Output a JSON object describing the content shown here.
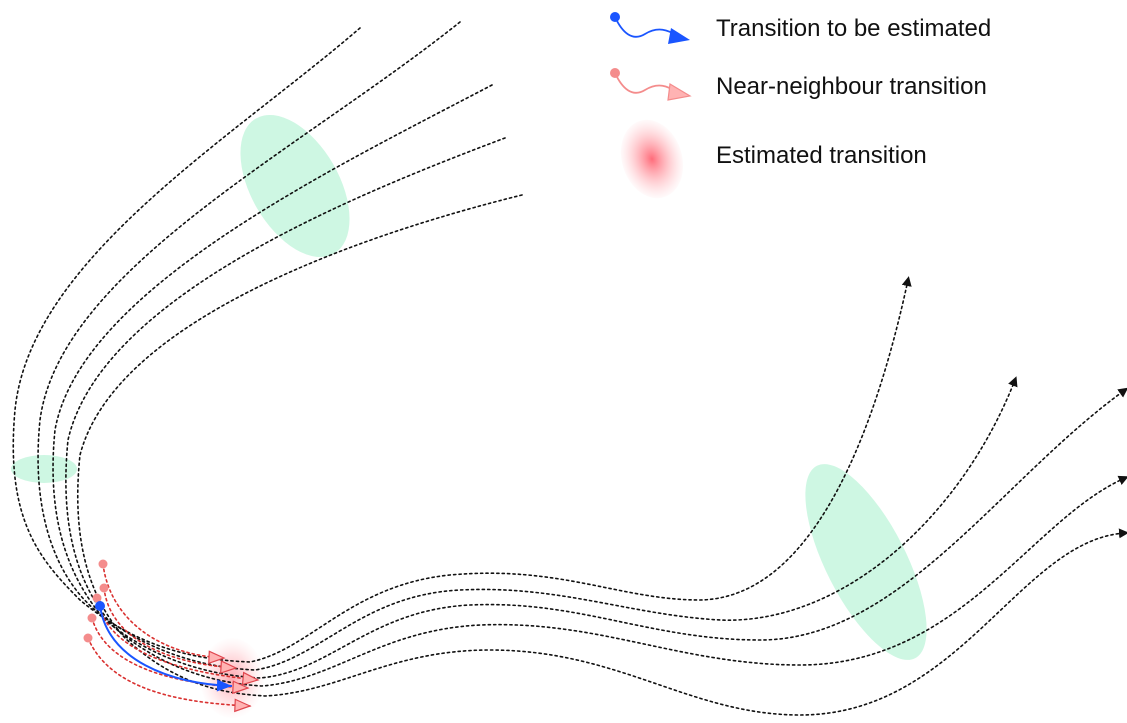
{
  "legend": {
    "items": [
      {
        "label": "Transition to be estimated",
        "icon": "blue-transition-icon",
        "color": "#1a55ff"
      },
      {
        "label": "Near-neighbour transition",
        "icon": "pink-transition-icon",
        "color": "#f48c8c"
      },
      {
        "label": "Estimated transition",
        "icon": "red-blob-icon",
        "color": "#ff4d5a"
      }
    ]
  },
  "colors": {
    "trajectory": "#111111",
    "neighbour_trajectory": "#d9302f",
    "region_highlight": "#9ef0c8",
    "estimated_blob": "#ff4d5a",
    "transition_blue": "#1a55ff"
  }
}
